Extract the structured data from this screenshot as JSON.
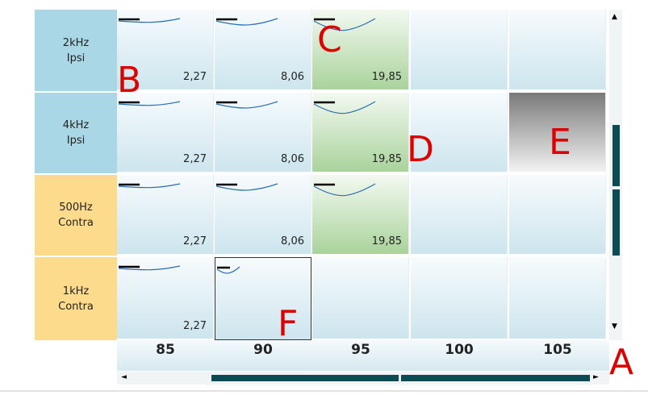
{
  "rows": [
    {
      "label": [
        "2kHz",
        "Ipsi"
      ],
      "cells": [
        "2,27",
        "8,06",
        "19,85"
      ]
    },
    {
      "label": [
        "4kHz",
        "Ipsi"
      ],
      "cells": [
        "2,27",
        "8,06",
        "19,85"
      ]
    },
    {
      "label": [
        "500Hz",
        "Contra"
      ],
      "cells": [
        "2,27",
        "8,06",
        "19,85"
      ]
    },
    {
      "label": [
        "1kHz",
        "Contra"
      ],
      "cells": [
        "2,27"
      ]
    }
  ],
  "columns": [
    "85",
    "90",
    "95",
    "100",
    "105"
  ],
  "annotations": [
    "A",
    "B",
    "C",
    "D",
    "E",
    "F"
  ]
}
